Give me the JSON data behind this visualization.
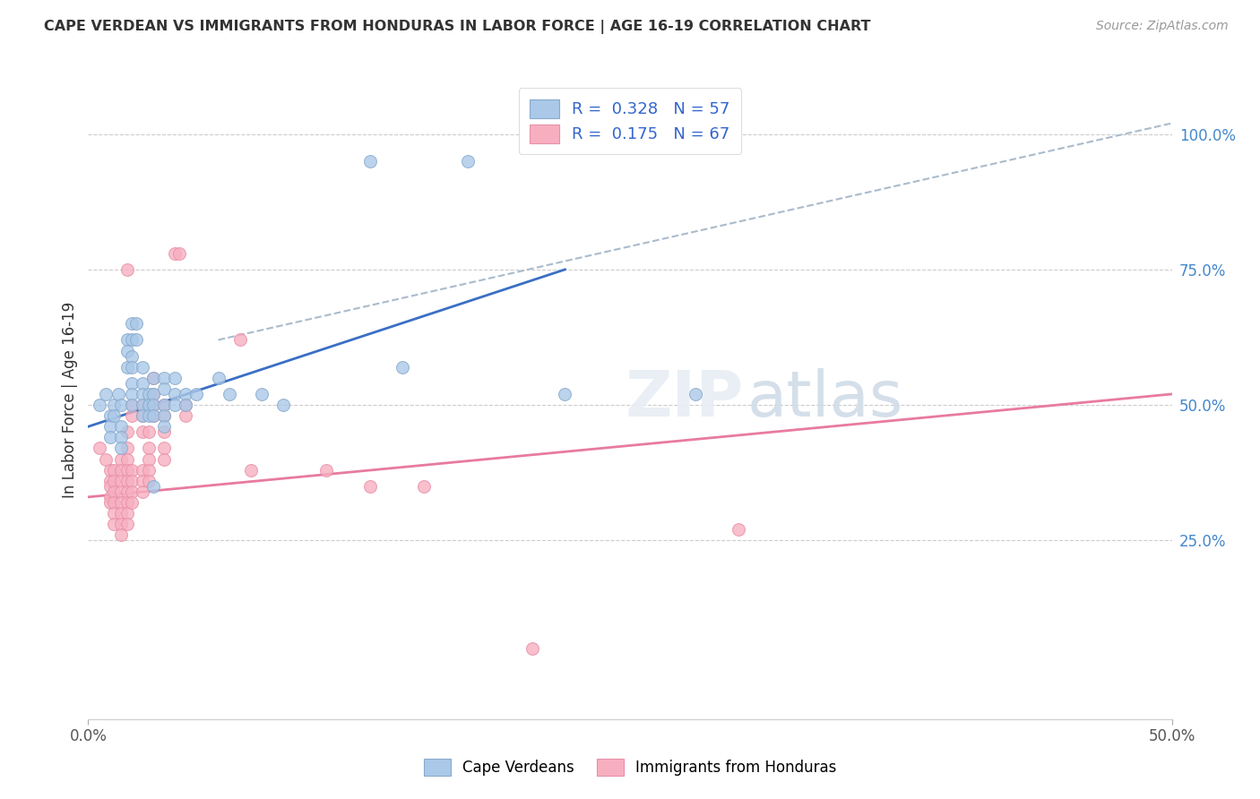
{
  "title": "CAPE VERDEAN VS IMMIGRANTS FROM HONDURAS IN LABOR FORCE | AGE 16-19 CORRELATION CHART",
  "source": "Source: ZipAtlas.com",
  "ylabel": "In Labor Force | Age 16-19",
  "xlim": [
    0.0,
    0.5
  ],
  "ylim": [
    -0.08,
    1.1
  ],
  "xtick_labels": [
    "0.0%",
    "50.0%"
  ],
  "xtick_positions": [
    0.0,
    0.5
  ],
  "ytick_labels": [
    "25.0%",
    "50.0%",
    "75.0%",
    "100.0%"
  ],
  "ytick_positions": [
    0.25,
    0.5,
    0.75,
    1.0
  ],
  "background_color": "#ffffff",
  "grid_color": "#cccccc",
  "blue_scatter": [
    [
      0.005,
      0.5
    ],
    [
      0.008,
      0.52
    ],
    [
      0.01,
      0.48
    ],
    [
      0.01,
      0.46
    ],
    [
      0.01,
      0.44
    ],
    [
      0.012,
      0.5
    ],
    [
      0.012,
      0.48
    ],
    [
      0.014,
      0.52
    ],
    [
      0.015,
      0.5
    ],
    [
      0.015,
      0.46
    ],
    [
      0.015,
      0.44
    ],
    [
      0.015,
      0.42
    ],
    [
      0.018,
      0.62
    ],
    [
      0.018,
      0.6
    ],
    [
      0.018,
      0.57
    ],
    [
      0.02,
      0.65
    ],
    [
      0.02,
      0.62
    ],
    [
      0.02,
      0.59
    ],
    [
      0.02,
      0.57
    ],
    [
      0.02,
      0.54
    ],
    [
      0.02,
      0.52
    ],
    [
      0.02,
      0.5
    ],
    [
      0.022,
      0.65
    ],
    [
      0.022,
      0.62
    ],
    [
      0.025,
      0.57
    ],
    [
      0.025,
      0.54
    ],
    [
      0.025,
      0.52
    ],
    [
      0.025,
      0.5
    ],
    [
      0.025,
      0.48
    ],
    [
      0.028,
      0.52
    ],
    [
      0.028,
      0.5
    ],
    [
      0.028,
      0.48
    ],
    [
      0.03,
      0.55
    ],
    [
      0.03,
      0.52
    ],
    [
      0.03,
      0.5
    ],
    [
      0.03,
      0.48
    ],
    [
      0.03,
      0.35
    ],
    [
      0.035,
      0.55
    ],
    [
      0.035,
      0.53
    ],
    [
      0.035,
      0.5
    ],
    [
      0.035,
      0.48
    ],
    [
      0.035,
      0.46
    ],
    [
      0.04,
      0.55
    ],
    [
      0.04,
      0.52
    ],
    [
      0.04,
      0.5
    ],
    [
      0.045,
      0.52
    ],
    [
      0.045,
      0.5
    ],
    [
      0.05,
      0.52
    ],
    [
      0.06,
      0.55
    ],
    [
      0.065,
      0.52
    ],
    [
      0.08,
      0.52
    ],
    [
      0.09,
      0.5
    ],
    [
      0.13,
      0.95
    ],
    [
      0.175,
      0.95
    ],
    [
      0.145,
      0.57
    ],
    [
      0.22,
      0.52
    ],
    [
      0.28,
      0.52
    ]
  ],
  "pink_scatter": [
    [
      0.005,
      0.42
    ],
    [
      0.008,
      0.4
    ],
    [
      0.01,
      0.38
    ],
    [
      0.01,
      0.36
    ],
    [
      0.01,
      0.35
    ],
    [
      0.01,
      0.33
    ],
    [
      0.01,
      0.32
    ],
    [
      0.012,
      0.38
    ],
    [
      0.012,
      0.36
    ],
    [
      0.012,
      0.34
    ],
    [
      0.012,
      0.32
    ],
    [
      0.012,
      0.3
    ],
    [
      0.012,
      0.28
    ],
    [
      0.015,
      0.4
    ],
    [
      0.015,
      0.38
    ],
    [
      0.015,
      0.36
    ],
    [
      0.015,
      0.34
    ],
    [
      0.015,
      0.32
    ],
    [
      0.015,
      0.3
    ],
    [
      0.015,
      0.28
    ],
    [
      0.015,
      0.26
    ],
    [
      0.018,
      0.75
    ],
    [
      0.018,
      0.45
    ],
    [
      0.018,
      0.42
    ],
    [
      0.018,
      0.4
    ],
    [
      0.018,
      0.38
    ],
    [
      0.018,
      0.36
    ],
    [
      0.018,
      0.34
    ],
    [
      0.018,
      0.32
    ],
    [
      0.018,
      0.3
    ],
    [
      0.018,
      0.28
    ],
    [
      0.02,
      0.5
    ],
    [
      0.02,
      0.48
    ],
    [
      0.02,
      0.38
    ],
    [
      0.02,
      0.36
    ],
    [
      0.02,
      0.34
    ],
    [
      0.02,
      0.32
    ],
    [
      0.025,
      0.5
    ],
    [
      0.025,
      0.48
    ],
    [
      0.025,
      0.45
    ],
    [
      0.025,
      0.38
    ],
    [
      0.025,
      0.36
    ],
    [
      0.025,
      0.34
    ],
    [
      0.028,
      0.45
    ],
    [
      0.028,
      0.42
    ],
    [
      0.028,
      0.4
    ],
    [
      0.028,
      0.38
    ],
    [
      0.028,
      0.36
    ],
    [
      0.03,
      0.55
    ],
    [
      0.03,
      0.52
    ],
    [
      0.03,
      0.5
    ],
    [
      0.03,
      0.48
    ],
    [
      0.035,
      0.5
    ],
    [
      0.035,
      0.48
    ],
    [
      0.035,
      0.45
    ],
    [
      0.035,
      0.42
    ],
    [
      0.035,
      0.4
    ],
    [
      0.04,
      0.78
    ],
    [
      0.042,
      0.78
    ],
    [
      0.045,
      0.5
    ],
    [
      0.045,
      0.48
    ],
    [
      0.07,
      0.62
    ],
    [
      0.075,
      0.38
    ],
    [
      0.11,
      0.38
    ],
    [
      0.13,
      0.35
    ],
    [
      0.155,
      0.35
    ],
    [
      0.3,
      0.27
    ],
    [
      0.205,
      0.05
    ]
  ],
  "blue_line_x": [
    0.0,
    0.22
  ],
  "blue_line_y": [
    0.46,
    0.75
  ],
  "pink_line_x": [
    0.0,
    0.5
  ],
  "pink_line_y": [
    0.33,
    0.52
  ],
  "dash_line_x": [
    0.06,
    0.5
  ],
  "dash_line_y": [
    0.62,
    1.02
  ]
}
